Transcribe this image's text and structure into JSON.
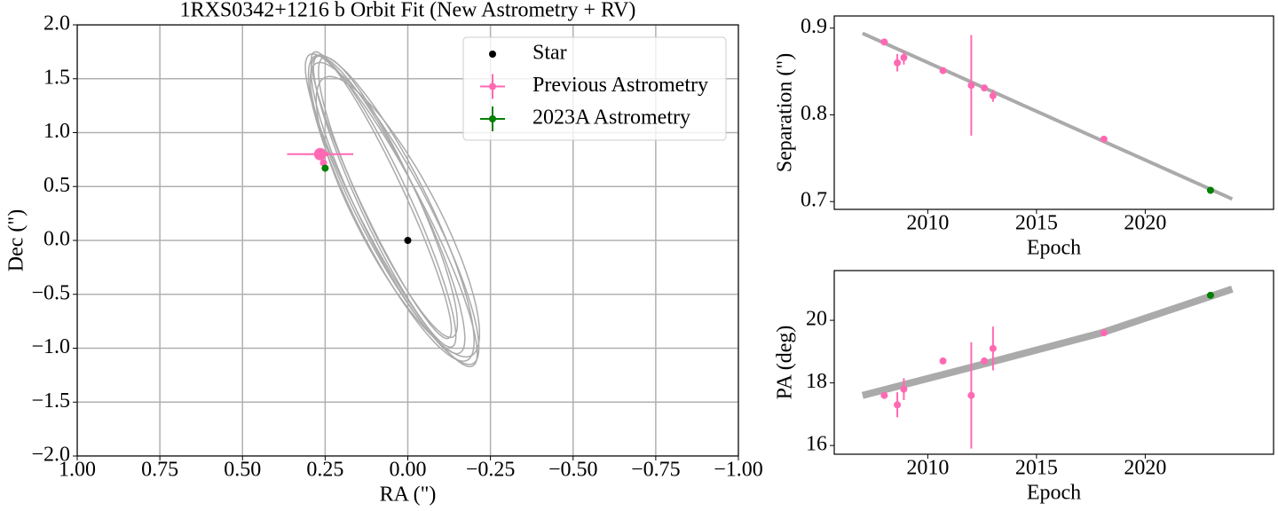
{
  "chart_data": [
    {
      "type": "scatter",
      "title": "1RXS0342+1216 b Orbit Fit (New Astrometry + RV)",
      "xlabel": "RA (\")",
      "ylabel": "Dec (\")",
      "xlim": [
        1,
        -1
      ],
      "ylim": [
        -2,
        2
      ],
      "xticks": [
        {
          "value": 1,
          "label": "1.00"
        },
        {
          "value": 0.75,
          "label": "0.75"
        },
        {
          "value": 0.5,
          "label": "0.50"
        },
        {
          "value": 0.25,
          "label": "0.25"
        },
        {
          "value": 0,
          "label": "0.00"
        },
        {
          "value": -0.25,
          "label": "−0.25"
        },
        {
          "value": -0.5,
          "label": "−0.50"
        },
        {
          "value": -0.75,
          "label": "−0.75"
        },
        {
          "value": -1,
          "label": "−1.00"
        }
      ],
      "yticks": [
        {
          "value": 2,
          "label": "2.0"
        },
        {
          "value": 1.5,
          "label": "1.5"
        },
        {
          "value": 1,
          "label": "1.0"
        },
        {
          "value": 0.5,
          "label": "0.5"
        },
        {
          "value": 0,
          "label": "0.0"
        },
        {
          "value": -0.5,
          "label": "−0.5"
        },
        {
          "value": -1,
          "label": "−1.0"
        },
        {
          "value": -1.5,
          "label": "−1.5"
        },
        {
          "value": -2,
          "label": "−2.0"
        }
      ],
      "grid": true,
      "legend": "upper right",
      "orbit_color": "#aaaaaa",
      "orbits": [
        {
          "center": [
            0.06,
            0.33
          ],
          "major": [
            0.21,
            1.38
          ],
          "minor": [
            0.1,
            -0.02
          ]
        },
        {
          "center": [
            0.05,
            0.3
          ],
          "major": [
            0.22,
            1.42
          ],
          "minor": [
            0.12,
            -0.03
          ]
        },
        {
          "center": [
            0.07,
            0.36
          ],
          "major": [
            0.2,
            1.35
          ],
          "minor": [
            0.08,
            -0.02
          ]
        },
        {
          "center": [
            0.04,
            0.25
          ],
          "major": [
            0.23,
            1.4
          ],
          "minor": [
            0.11,
            -0.05
          ]
        },
        {
          "center": [
            0.06,
            0.4
          ],
          "major": [
            0.19,
            1.3
          ],
          "minor": [
            0.09,
            -0.01
          ]
        },
        {
          "center": [
            0.03,
            0.22
          ],
          "major": [
            0.21,
            1.3
          ],
          "minor": [
            0.13,
            -0.04
          ]
        },
        {
          "center": [
            0.08,
            0.42
          ],
          "major": [
            0.2,
            1.33
          ],
          "minor": [
            0.07,
            -0.02
          ]
        },
        {
          "center": [
            0.05,
            0.28
          ],
          "major": [
            0.24,
            1.45
          ],
          "minor": [
            0.1,
            -0.03
          ]
        }
      ],
      "series": [
        {
          "name": "Star",
          "color": "#000000",
          "x": [
            0
          ],
          "values": [
            0
          ]
        },
        {
          "name": "Previous Astrometry",
          "color": "#ff69b4",
          "x": [
            0.265,
            0.26,
            0.255,
            0.26
          ],
          "values": [
            0.8,
            0.81,
            0.72,
            0.79
          ],
          "xerr": [
            0.1,
            0.02,
            0.01,
            0.02
          ],
          "yerr": [
            0.05,
            0.03,
            0.02,
            0.03
          ]
        },
        {
          "name": "2023A Astrometry",
          "color": "#008000",
          "x": [
            0.25
          ],
          "values": [
            0.67
          ],
          "xerr": [
            0.005
          ],
          "yerr": [
            0.005
          ]
        }
      ]
    },
    {
      "type": "scatter",
      "xlabel": "Epoch",
      "ylabel": "Separation (\")",
      "xlim": [
        2005.7,
        2025.9
      ],
      "ylim": [
        0.691,
        0.914
      ],
      "xticks": [
        2010,
        2015,
        2020
      ],
      "yticks": [
        0.7,
        0.8,
        0.9
      ],
      "model": {
        "color": "#aaaaaa",
        "x": [
          2007,
          2024
        ],
        "values": [
          0.894,
          0.703
        ]
      },
      "series": [
        {
          "color": "#ff69b4",
          "x": [
            2008.0,
            2008.6,
            2008.9,
            2010.7,
            2012.0,
            2012.6,
            2013.0,
            2018.1
          ],
          "values": [
            0.884,
            0.86,
            0.866,
            0.851,
            0.834,
            0.831,
            0.822,
            0.772
          ],
          "yerr": [
            0.002,
            0.01,
            0.008,
            0.002,
            0.058,
            0.002,
            0.007,
            0.002
          ]
        },
        {
          "color": "#008000",
          "x": [
            2023.0
          ],
          "values": [
            0.713
          ],
          "yerr": [
            0.002
          ]
        }
      ]
    },
    {
      "type": "scatter",
      "xlabel": "Epoch",
      "ylabel": "PA (deg)",
      "xlim": [
        2005.7,
        2025.9
      ],
      "ylim": [
        15.72,
        21.59
      ],
      "xticks": [
        2010,
        2015,
        2020
      ],
      "yticks": [
        16,
        18,
        20
      ],
      "model": {
        "color": "#aaaaaa",
        "x": [
          2007,
          2012,
          2018,
          2024
        ],
        "values": [
          17.6,
          18.5,
          19.6,
          21.0
        ]
      },
      "series": [
        {
          "color": "#ff69b4",
          "x": [
            2008.0,
            2008.6,
            2008.9,
            2010.7,
            2012.0,
            2012.6,
            2013.0,
            2018.1
          ],
          "values": [
            17.6,
            17.3,
            17.8,
            18.7,
            17.6,
            18.7,
            19.1,
            19.6
          ],
          "yerr": [
            0.05,
            0.4,
            0.35,
            0.05,
            1.7,
            0.05,
            0.7,
            0.05
          ]
        },
        {
          "color": "#008000",
          "x": [
            2023.0
          ],
          "values": [
            20.8
          ],
          "yerr": [
            0.1
          ]
        }
      ]
    }
  ]
}
